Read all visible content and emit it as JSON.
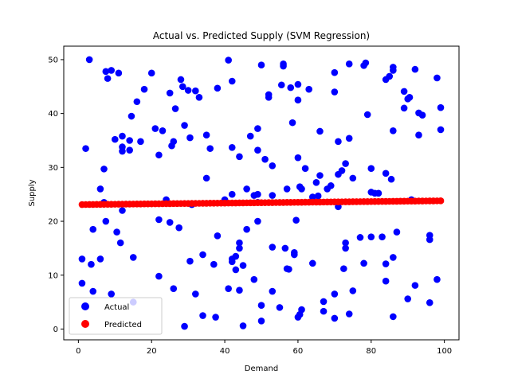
{
  "chart_data": {
    "type": "scatter",
    "title": "Actual vs. Predicted Supply (SVM Regression)",
    "xlabel": "Demand",
    "ylabel": "Supply",
    "xlim": [
      -4,
      104
    ],
    "ylim": [
      -2,
      52.5
    ],
    "xticks": [
      "0",
      "20",
      "40",
      "60",
      "80",
      "100"
    ],
    "yticks": [
      "0",
      "10",
      "20",
      "30",
      "40",
      "50"
    ],
    "grid": false,
    "legend_position": "lower-left",
    "series": [
      {
        "name": "Actual",
        "color": "#0000ff",
        "points": [
          [
            1,
            13
          ],
          [
            1,
            8.5
          ],
          [
            2,
            33.5
          ],
          [
            3,
            50
          ],
          [
            4,
            18.5
          ],
          [
            3.5,
            12
          ],
          [
            4,
            7
          ],
          [
            6,
            13
          ],
          [
            6,
            26
          ],
          [
            7,
            29.7
          ],
          [
            7.5,
            47.8
          ],
          [
            7,
            23.5
          ],
          [
            8,
            46.5
          ],
          [
            7.5,
            20
          ],
          [
            9,
            48
          ],
          [
            9,
            6.5
          ],
          [
            10,
            35.2
          ],
          [
            10.5,
            18
          ],
          [
            11,
            47.5
          ],
          [
            11.5,
            16
          ],
          [
            12,
            33.8
          ],
          [
            12,
            35.8
          ],
          [
            12,
            33
          ],
          [
            12,
            22
          ],
          [
            14,
            35
          ],
          [
            14,
            33.2
          ],
          [
            14.5,
            39.5
          ],
          [
            15,
            13.3
          ],
          [
            15,
            5
          ],
          [
            16,
            42.2
          ],
          [
            17,
            34.8
          ],
          [
            18,
            44.5
          ],
          [
            20,
            47.5
          ],
          [
            21,
            37.2
          ],
          [
            22,
            32.3
          ],
          [
            22,
            20.3
          ],
          [
            22,
            9.8
          ],
          [
            23,
            36.8
          ],
          [
            24,
            24
          ],
          [
            25,
            19.8
          ],
          [
            25,
            43.8
          ],
          [
            25.5,
            34
          ],
          [
            26,
            34.8
          ],
          [
            26.5,
            40.9
          ],
          [
            26,
            7.5
          ],
          [
            27.5,
            18.8
          ],
          [
            28,
            46.3
          ],
          [
            28.5,
            45
          ],
          [
            29,
            37.8
          ],
          [
            29,
            0.5
          ],
          [
            30,
            44.3
          ],
          [
            30.5,
            12.6
          ],
          [
            30.5,
            35.5
          ],
          [
            31,
            23.1
          ],
          [
            32,
            6.5
          ],
          [
            32,
            44.2
          ],
          [
            33,
            43
          ],
          [
            34,
            13.8
          ],
          [
            34,
            2.5
          ],
          [
            35,
            36
          ],
          [
            35,
            28
          ],
          [
            36,
            33.5
          ],
          [
            37,
            12
          ],
          [
            38,
            17.3
          ],
          [
            37.5,
            2.2
          ],
          [
            38,
            44.7
          ],
          [
            40,
            24
          ],
          [
            41,
            49.9
          ],
          [
            41,
            7.5
          ],
          [
            42,
            46
          ],
          [
            42,
            33.7
          ],
          [
            42,
            12.5
          ],
          [
            42,
            13
          ],
          [
            42,
            25
          ],
          [
            43,
            13.5
          ],
          [
            43,
            11
          ],
          [
            44,
            16
          ],
          [
            44,
            15
          ],
          [
            44,
            7.2
          ],
          [
            44,
            32
          ],
          [
            45,
            11.8
          ],
          [
            45,
            0.6
          ],
          [
            46,
            18.5
          ],
          [
            46,
            26
          ],
          [
            47,
            35.8
          ],
          [
            48,
            9.2
          ],
          [
            48,
            24.8
          ],
          [
            49,
            25
          ],
          [
            49,
            23.5
          ],
          [
            49,
            20
          ],
          [
            49,
            33.2
          ],
          [
            49,
            37.2
          ],
          [
            50,
            49
          ],
          [
            50,
            4.4
          ],
          [
            50,
            1.5
          ],
          [
            51,
            31.5
          ],
          [
            52,
            43
          ],
          [
            52,
            43.5
          ],
          [
            53,
            30.3
          ],
          [
            53,
            24.8
          ],
          [
            53,
            15.2
          ],
          [
            53,
            7
          ],
          [
            55,
            4
          ],
          [
            55.5,
            45.3
          ],
          [
            56,
            48.8
          ],
          [
            56,
            49.2
          ],
          [
            56.5,
            15
          ],
          [
            57,
            26
          ],
          [
            57,
            11.2
          ],
          [
            57.5,
            11.1
          ],
          [
            58,
            44.8
          ],
          [
            58.5,
            38.3
          ],
          [
            59,
            14.2
          ],
          [
            59,
            13.8
          ],
          [
            59.5,
            20.2
          ],
          [
            60,
            45.4
          ],
          [
            60,
            2.2
          ],
          [
            60,
            31.8
          ],
          [
            60,
            42.5
          ],
          [
            60.5,
            26.4
          ],
          [
            60.5,
            2.7
          ],
          [
            61,
            26
          ],
          [
            61,
            3.6
          ],
          [
            62,
            29.8
          ],
          [
            63,
            44.5
          ],
          [
            64,
            12.2
          ],
          [
            64,
            24.5
          ],
          [
            65,
            27.2
          ],
          [
            65.5,
            24.7
          ],
          [
            66,
            36.7
          ],
          [
            66,
            28.5
          ],
          [
            67,
            5.1
          ],
          [
            67,
            3.3
          ],
          [
            68,
            26
          ],
          [
            69,
            26.6
          ],
          [
            70,
            6.5
          ],
          [
            70,
            47.6
          ],
          [
            70,
            2
          ],
          [
            70,
            44
          ],
          [
            71,
            34.8
          ],
          [
            71,
            22.7
          ],
          [
            71,
            28.7
          ],
          [
            72,
            29.4
          ],
          [
            72.5,
            11.2
          ],
          [
            73,
            30.7
          ],
          [
            73,
            15
          ],
          [
            73,
            16
          ],
          [
            74,
            49.2
          ],
          [
            74,
            35.4
          ],
          [
            74,
            2.8
          ],
          [
            75,
            7.1
          ],
          [
            75,
            28
          ],
          [
            77,
            17
          ],
          [
            78,
            12.2
          ],
          [
            78,
            48.9
          ],
          [
            78.5,
            49.4
          ],
          [
            79,
            39.8
          ],
          [
            80,
            25.4
          ],
          [
            80,
            17.1
          ],
          [
            80,
            29.8
          ],
          [
            81,
            25.2
          ],
          [
            82,
            25.2
          ],
          [
            83,
            17.1
          ],
          [
            84,
            8.9
          ],
          [
            84,
            28.9
          ],
          [
            84,
            46.3
          ],
          [
            84,
            12.1
          ],
          [
            85,
            46.9
          ],
          [
            85.5,
            27.8
          ],
          [
            86,
            48.6
          ],
          [
            86,
            48
          ],
          [
            86,
            13.3
          ],
          [
            86,
            2.3
          ],
          [
            86,
            36.8
          ],
          [
            87,
            18
          ],
          [
            89,
            44.1
          ],
          [
            89,
            41
          ],
          [
            90,
            5.6
          ],
          [
            90,
            42.7
          ],
          [
            90.5,
            43
          ],
          [
            91,
            24
          ],
          [
            92,
            8.1
          ],
          [
            92,
            48.2
          ],
          [
            93,
            40.1
          ],
          [
            93,
            36
          ],
          [
            94,
            39.7
          ],
          [
            96,
            16.6
          ],
          [
            96,
            17.4
          ],
          [
            96,
            4.9
          ],
          [
            98,
            46.6
          ],
          [
            98,
            9.2
          ],
          [
            99,
            37
          ],
          [
            99,
            41.1
          ]
        ]
      },
      {
        "name": "Predicted",
        "color": "#ff0000",
        "x_start": 1,
        "x_end": 99,
        "y_start": 23.1,
        "y_end": 23.8
      }
    ]
  }
}
